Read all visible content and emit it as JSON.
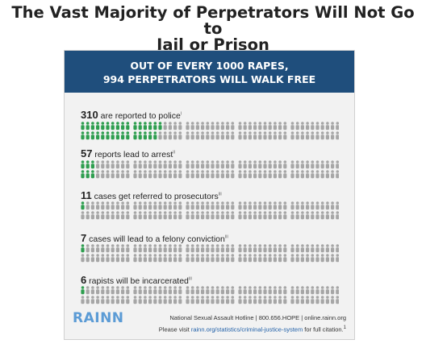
{
  "page": {
    "title_line1": "The Vast Majority of Perpetrators Will Not Go to",
    "title_line2": "Jail or Prison"
  },
  "banner": {
    "line1": "OUT OF EVERY 1000 RAPES,",
    "line2": "994 PERPETRATORS WILL WALK FREE"
  },
  "colors": {
    "banner": "#1f4e7c",
    "highlight": "#2e9e4f",
    "inactive": "#a6a6a6",
    "background": "#f2f2f2"
  },
  "chart_data": {
    "type": "table",
    "total": 1000,
    "rows": [
      {
        "value": 310,
        "label": "are reported to police",
        "note": "i"
      },
      {
        "value": 57,
        "label": "reports lead to arrest",
        "note": "ii"
      },
      {
        "value": 11,
        "label": "cases get referred to prosecutors",
        "note": "iii"
      },
      {
        "value": 7,
        "label": "cases will lead to a felony conviction",
        "note": "iii"
      },
      {
        "value": 6,
        "label": "rapists will be incarcerated",
        "note": "iii"
      }
    ]
  },
  "footer": {
    "logo": "RAINN",
    "hotline": "National Sexual Assault Hotline | 800.656.HOPE | online.rainn.org",
    "citation_prefix": "Please visit ",
    "citation_link": "rainn.org/statistics/criminal-justice-system",
    "citation_suffix": " for full citation.",
    "citation_mark": "1"
  }
}
